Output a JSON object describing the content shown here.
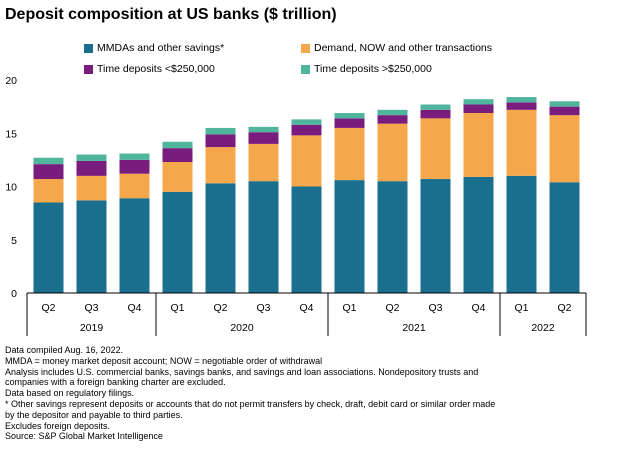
{
  "chart_data": {
    "type": "bar",
    "stacked": true,
    "title": "Deposit composition at US banks ($ trillion)",
    "categories": [
      "Q2",
      "Q3",
      "Q4",
      "Q1",
      "Q2",
      "Q3",
      "Q4",
      "Q1",
      "Q2",
      "Q3",
      "Q4",
      "Q1",
      "Q2"
    ],
    "year_groups": [
      {
        "label": "2019",
        "from": 0,
        "to": 2
      },
      {
        "label": "2020",
        "from": 3,
        "to": 6
      },
      {
        "label": "2021",
        "from": 7,
        "to": 10
      },
      {
        "label": "2022",
        "from": 11,
        "to": 12
      }
    ],
    "ylim": [
      0,
      20
    ],
    "yticks": [
      0,
      5,
      10,
      15,
      20
    ],
    "grid": false,
    "legend_position": "top",
    "series": [
      {
        "name": "MMDAs and other savings*",
        "color": "#1a6e8e",
        "values": [
          8.5,
          8.7,
          8.9,
          9.5,
          10.3,
          10.5,
          10.0,
          10.6,
          10.5,
          10.7,
          10.9,
          11.0,
          10.4
        ]
      },
      {
        "name": "Demand, NOW and other transactions",
        "color": "#f5a84b",
        "values": [
          2.2,
          2.3,
          2.3,
          2.8,
          3.4,
          3.5,
          4.8,
          4.9,
          5.4,
          5.7,
          6.0,
          6.2,
          6.3
        ]
      },
      {
        "name": "Time deposits <$250,000",
        "color": "#7a1c7e",
        "values": [
          1.4,
          1.4,
          1.3,
          1.3,
          1.2,
          1.1,
          1.0,
          0.9,
          0.8,
          0.8,
          0.8,
          0.7,
          0.8
        ]
      },
      {
        "name": "Time deposits >$250,000",
        "color": "#4fb59c",
        "values": [
          0.6,
          0.6,
          0.6,
          0.6,
          0.6,
          0.5,
          0.5,
          0.5,
          0.5,
          0.5,
          0.5,
          0.5,
          0.5
        ]
      }
    ]
  },
  "notes": [
    "Data compiled Aug. 16, 2022.",
    "MMDA = money market deposit account; NOW = negotiable order of withdrawal",
    "Analysis includes U.S. commercial banks, savings banks, and savings and loan associations. Nondepository trusts and",
    "companies with a foreign banking charter are excluded.",
    "Data based on regulatory filings.",
    "* Other savings represent deposits or accounts that do not permit transfers by check, draft, debit card or similar order made",
    "by the depositor and payable to third parties.",
    "Excludes foreign deposits.",
    "Source: S&P Global Market Intelligence"
  ]
}
